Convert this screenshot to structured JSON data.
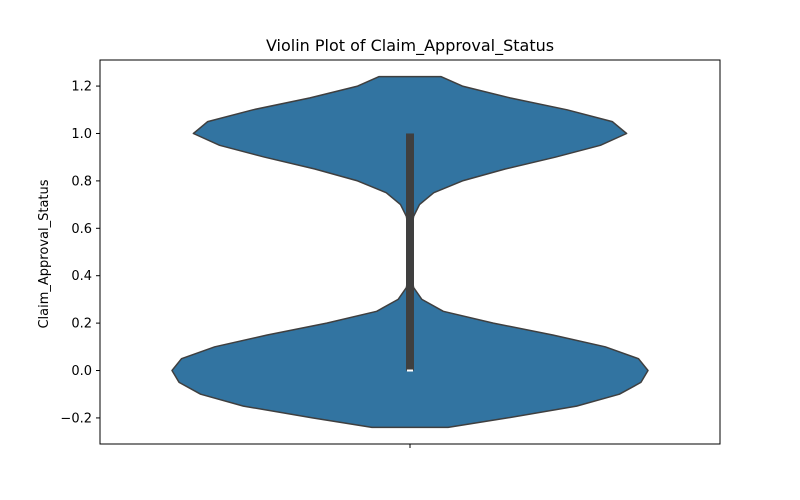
{
  "chart_data": {
    "type": "violin",
    "title": "Violin Plot of Claim_Approval_Status",
    "xlabel": "",
    "ylabel": "Claim_Approval_Status",
    "ylim": [
      -0.31,
      1.31
    ],
    "yticks": [
      -0.2,
      0.0,
      0.2,
      0.4,
      0.6,
      0.8,
      1.0,
      1.2
    ],
    "ytick_labels": [
      "−0.2",
      "0.0",
      "0.2",
      "0.4",
      "0.6",
      "0.8",
      "1.0",
      "1.2"
    ],
    "grid": false,
    "series": [
      {
        "violin": {
          "y_range": [
            -0.24,
            1.24
          ],
          "density_modes": [
            0.0,
            1.0
          ],
          "waist_y": 0.5,
          "relative_width_profile": [
            [
              -0.24,
              0.16
            ],
            [
              -0.2,
              0.41
            ],
            [
              -0.15,
              0.7
            ],
            [
              -0.1,
              0.88
            ],
            [
              -0.05,
              0.97
            ],
            [
              0.0,
              1.0
            ],
            [
              0.05,
              0.96
            ],
            [
              0.1,
              0.82
            ],
            [
              0.15,
              0.6
            ],
            [
              0.2,
              0.35
            ],
            [
              0.25,
              0.14
            ],
            [
              0.3,
              0.05
            ],
            [
              0.35,
              0.015
            ],
            [
              0.4,
              0.008
            ],
            [
              0.45,
              0.006
            ],
            [
              0.5,
              0.006
            ],
            [
              0.55,
              0.006
            ],
            [
              0.6,
              0.008
            ],
            [
              0.65,
              0.015
            ],
            [
              0.7,
              0.04
            ],
            [
              0.75,
              0.1
            ],
            [
              0.8,
              0.22
            ],
            [
              0.85,
              0.4
            ],
            [
              0.9,
              0.61
            ],
            [
              0.95,
              0.8
            ],
            [
              1.0,
              0.91
            ],
            [
              1.05,
              0.85
            ],
            [
              1.1,
              0.66
            ],
            [
              1.15,
              0.42
            ],
            [
              1.2,
              0.22
            ],
            [
              1.24,
              0.13
            ]
          ]
        },
        "box": {
          "q1": 0.0,
          "median": 0.0,
          "q3": 1.0,
          "whisker_low": 0.0,
          "whisker_high": 1.0
        }
      }
    ],
    "colors": {
      "fill": "#3274a1",
      "edge": "#3f3f3f",
      "box": "#3f3f3f",
      "median": "#ffffff"
    }
  }
}
